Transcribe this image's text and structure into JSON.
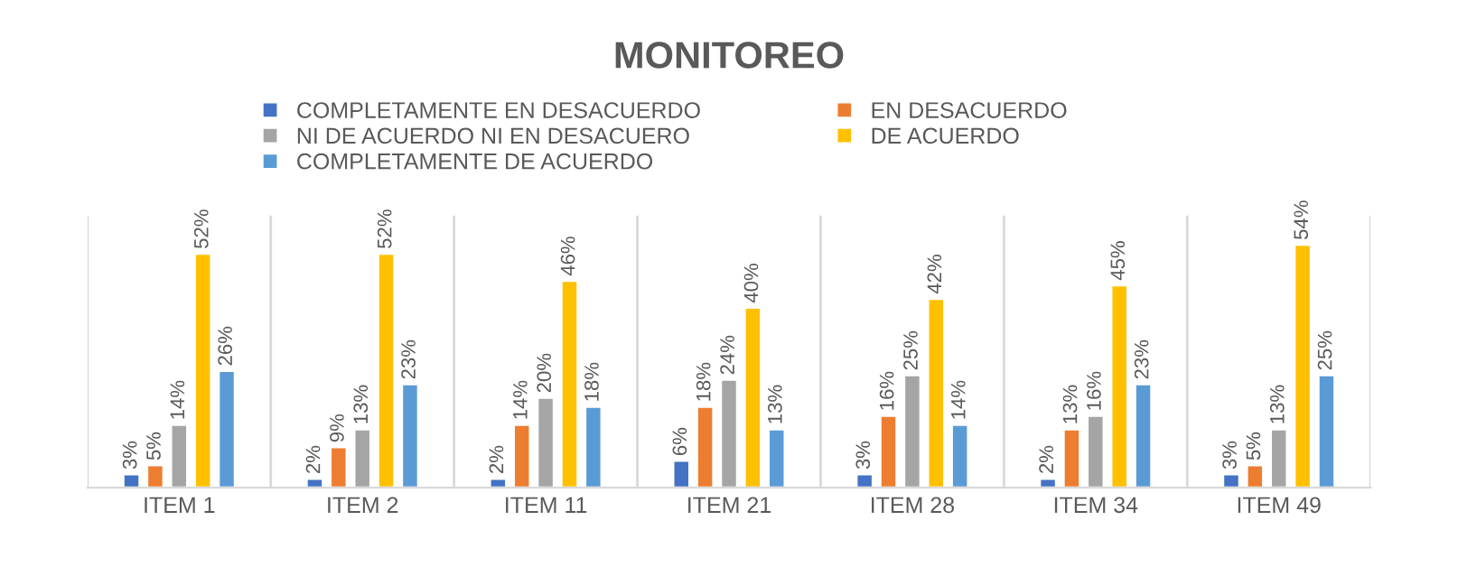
{
  "chart_data": {
    "type": "bar",
    "title": "MONITOREO",
    "categories": [
      "ITEM 1",
      "ITEM 2",
      "ITEM 11",
      "ITEM 21",
      "ITEM 28",
      "ITEM 34",
      "ITEM 49"
    ],
    "series": [
      {
        "name": "COMPLETAMENTE EN DESACUERDO",
        "color": "#4472c4",
        "values": [
          3,
          2,
          2,
          6,
          3,
          2,
          3
        ],
        "value_labels": [
          "3%",
          "2%",
          "2%",
          "6%",
          "3%",
          "2%",
          "3%"
        ]
      },
      {
        "name": "EN DESACUERDO",
        "color": "#ed7d31",
        "values": [
          5,
          9,
          14,
          18,
          16,
          13,
          5
        ],
        "value_labels": [
          "5%",
          "9%",
          "14%",
          "18%",
          "16%",
          "13%",
          "5%"
        ]
      },
      {
        "name": "NI DE ACUERDO NI EN DESACUERO",
        "color": "#a5a5a5",
        "values": [
          14,
          13,
          20,
          24,
          25,
          16,
          13
        ],
        "value_labels": [
          "14%",
          "13%",
          "20%",
          "24%",
          "25%",
          "16%",
          "13%"
        ]
      },
      {
        "name": "DE ACUERDO",
        "color": "#ffc000",
        "values": [
          52,
          52,
          46,
          40,
          42,
          45,
          54
        ],
        "value_labels": [
          "52%",
          "52%",
          "46%",
          "40%",
          "42%",
          "45%",
          "54%"
        ]
      },
      {
        "name": "COMPLETAMENTE DE ACUERDO",
        "color": "#5b9bd5",
        "values": [
          26,
          23,
          18,
          13,
          14,
          23,
          25
        ],
        "value_labels": [
          "26%",
          "23%",
          "18%",
          "13%",
          "14%",
          "23%",
          "25%"
        ]
      }
    ],
    "legend": "top",
    "grid": false
  }
}
